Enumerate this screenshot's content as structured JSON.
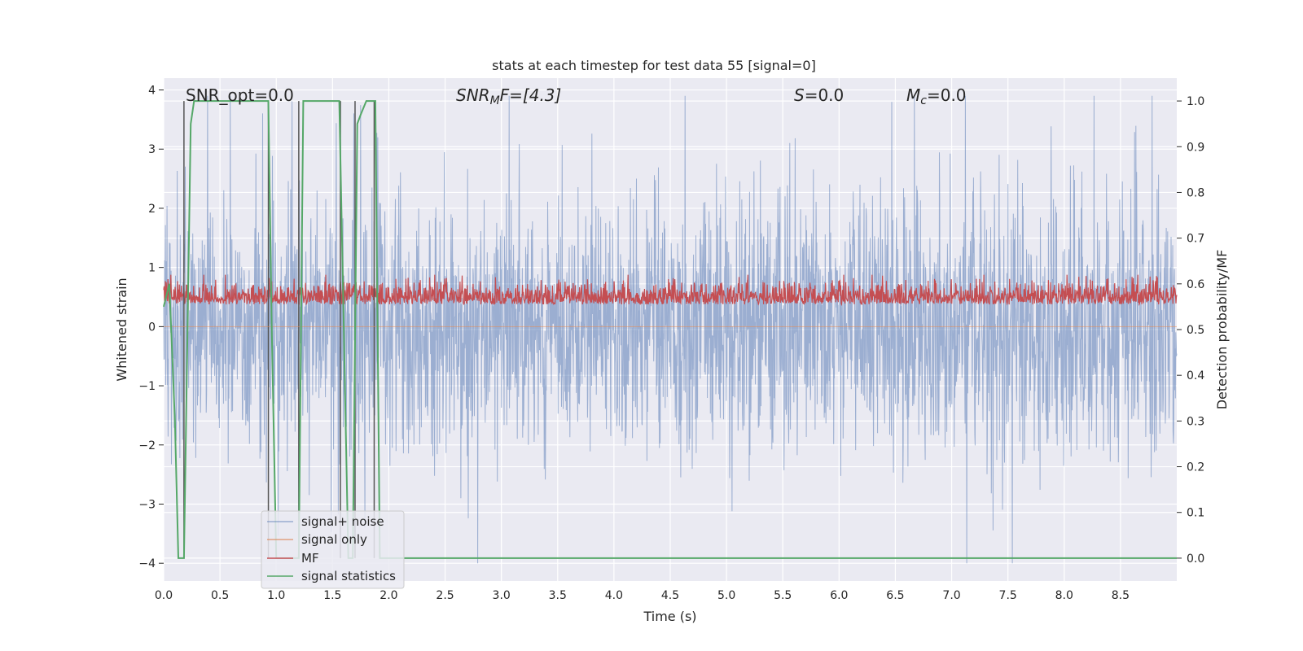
{
  "chart_data": {
    "type": "line",
    "title": "stats at each timestep for test data 55 [signal=0]",
    "xlabel": "Time (s)",
    "ylabel_left": "Whitened strain",
    "ylabel_right": "Detection probability/MF",
    "xlim": [
      0.0,
      9.0
    ],
    "ylim_left": [
      -4.3,
      4.2
    ],
    "ylim_right": [
      -0.05,
      1.05
    ],
    "x_ticks": [
      "0.0",
      "0.5",
      "1.0",
      "1.5",
      "2.0",
      "2.5",
      "3.0",
      "3.5",
      "4.0",
      "4.5",
      "5.0",
      "5.5",
      "6.0",
      "6.5",
      "7.0",
      "7.5",
      "8.0",
      "8.5"
    ],
    "y_ticks_left": [
      "4",
      "3",
      "2",
      "1",
      "0",
      "−1",
      "−2",
      "−3",
      "−4"
    ],
    "y_ticks_right": [
      "1.0",
      "0.9",
      "0.8",
      "0.7",
      "0.6",
      "0.5",
      "0.4",
      "0.3",
      "0.2",
      "0.1",
      "0.0"
    ],
    "grid": true,
    "legend_position": "lower-left",
    "annotations": {
      "snr_opt": "SNR_opt=0.0",
      "snr_mf_prefix": "SNR",
      "snr_mf_sub": "M",
      "snr_mf_suffix": "F=[4.3]",
      "s_label": "S",
      "s_value": "=0.0",
      "mc_label": "M",
      "mc_sub": "c",
      "mc_value": "=0.0"
    },
    "series": [
      {
        "name": "signal+ noise",
        "color": "#4c72b0",
        "axis": "left",
        "description": "whitened noise, approx. zero-mean, peaks to about ±3.9",
        "approx_range": [
          -4.0,
          3.9
        ]
      },
      {
        "name": "signal only",
        "color": "#dd8452",
        "axis": "left",
        "values_note": "flat zero"
      },
      {
        "name": "MF",
        "color": "#c44e52",
        "axis": "right",
        "approx_range": [
          0.52,
          0.62
        ]
      },
      {
        "name": "signal statistics",
        "color": "#55a868",
        "axis": "right",
        "x": [
          0.0,
          0.05,
          0.1,
          0.13,
          0.18,
          0.24,
          0.27,
          0.3,
          0.93,
          0.96,
          1.0,
          1.04,
          1.2,
          1.24,
          1.3,
          1.56,
          1.6,
          1.64,
          1.68,
          1.72,
          1.75,
          1.8,
          1.85,
          1.88,
          1.92,
          1.95,
          2.0,
          9.0
        ],
        "values": [
          0.55,
          0.6,
          0.3,
          0.0,
          0.0,
          0.95,
          1.0,
          1.0,
          1.0,
          0.5,
          0.0,
          0.0,
          0.0,
          1.0,
          1.0,
          1.0,
          0.5,
          0.0,
          0.0,
          0.95,
          0.97,
          1.0,
          1.0,
          1.0,
          0.0,
          0.0,
          0.0,
          0.0
        ]
      }
    ],
    "event_markers_x": [
      0.18,
      0.93,
      1.2,
      1.57,
      1.7,
      1.87
    ]
  }
}
